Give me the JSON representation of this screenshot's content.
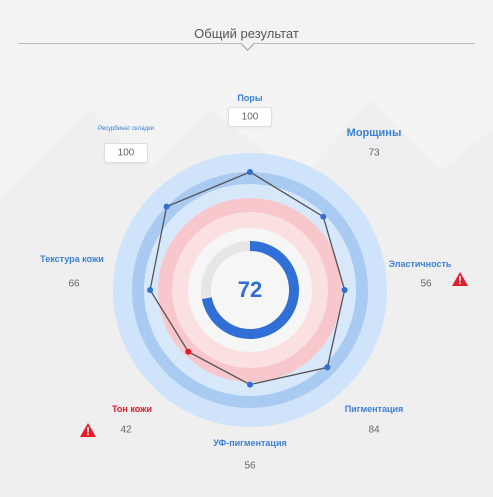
{
  "header": {
    "title": "Общий результат"
  },
  "chart_data": {
    "type": "radar",
    "center_score": 72,
    "axes": [
      {
        "name": "Поры",
        "value": 100
      },
      {
        "name": "Морщины",
        "value": 73
      },
      {
        "name": "Эластичность",
        "value": 56,
        "warning": true
      },
      {
        "name": "Пигментация",
        "value": 84
      },
      {
        "name": "УФ-пигментация",
        "value": 56
      },
      {
        "name": "Тон кожи",
        "value": 42,
        "warning": true
      },
      {
        "name": "Текстура кожи",
        "value": 66
      },
      {
        "name": "Ресурбинат складки",
        "value": 100
      }
    ],
    "colors": {
      "accent": "#2f6fd6",
      "ring_blue": "#9fc3ef",
      "ring_pink": "#f5b8bd",
      "warning": "#e11d2a"
    }
  },
  "labels": {
    "pory": "Поры",
    "morshchiny": "Морщины",
    "elastichnost": "Эластичность",
    "pigmentatsiya": "Пигментация",
    "uf": "УФ-пигментация",
    "ton": "Тон кожи",
    "tekstura": "Текстура кожи",
    "skladki": "Ресурбинат складки"
  },
  "values": {
    "pory": "100",
    "morshchiny": "73",
    "elastichnost": "56",
    "pigmentatsiya": "84",
    "uf": "56",
    "ton": "42",
    "tekstura": "66",
    "skladki": "100",
    "center": "72"
  }
}
